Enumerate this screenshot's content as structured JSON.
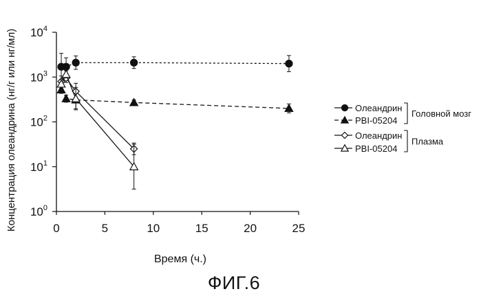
{
  "chart_data": {
    "type": "scatter",
    "xlabel": "Время (ч.)",
    "ylabel": "Концентрация олеандрина (нг/г или нг/мл)",
    "xlim": [
      0,
      25
    ],
    "ylim": [
      1,
      10000
    ],
    "y_scale": "log",
    "x_ticks": [
      "0",
      "5",
      "10",
      "15",
      "20",
      "25"
    ],
    "y_ticks": [
      {
        "value": 1,
        "base": "10",
        "exp": "0"
      },
      {
        "value": 10,
        "base": "10",
        "exp": "1"
      },
      {
        "value": 100,
        "base": "10",
        "exp": "2"
      },
      {
        "value": 1000,
        "base": "10",
        "exp": "3"
      },
      {
        "value": 10000,
        "base": "10",
        "exp": "4"
      }
    ],
    "grid": false,
    "legend_position": "right",
    "legend_groups": [
      {
        "label": "Головной мозг",
        "series": [
          0,
          1
        ]
      },
      {
        "label": "Плазма",
        "series": [
          2,
          3
        ]
      }
    ],
    "series": [
      {
        "name": "Олеандрин",
        "marker": "circle",
        "filled": true,
        "line": "solid",
        "color": "#111111",
        "x": [
          0.5,
          1,
          2,
          8,
          24
        ],
        "y": [
          1700,
          1700,
          2100,
          2100,
          2000
        ],
        "err": [
          0.3,
          0.2,
          0.15,
          0.13,
          0.18
        ]
      },
      {
        "name": "PBI-05204",
        "marker": "triangle",
        "filled": true,
        "line": "dashed",
        "color": "#111111",
        "x": [
          0.5,
          1,
          2,
          8,
          24
        ],
        "y": [
          520,
          330,
          310,
          270,
          200
        ],
        "err": [
          0.08,
          0.08,
          0.2,
          0.06,
          0.1
        ]
      },
      {
        "name": "Олеандрин",
        "marker": "diamond",
        "filled": false,
        "line": "solid",
        "color": "#111111",
        "x": [
          0.5,
          1,
          2,
          8
        ],
        "y": [
          800,
          950,
          480,
          25
        ],
        "err": [
          0.12,
          0.1,
          0.18,
          0.13
        ]
      },
      {
        "name": "PBI-05204",
        "marker": "triangle",
        "filled": false,
        "line": "solid",
        "color": "#111111",
        "x": [
          0.5,
          1,
          2,
          8
        ],
        "y": [
          700,
          1150,
          330,
          10
        ],
        "err": [
          0.1,
          0.08,
          0.25,
          0.5
        ]
      }
    ]
  },
  "caption": "ФИГ.6"
}
